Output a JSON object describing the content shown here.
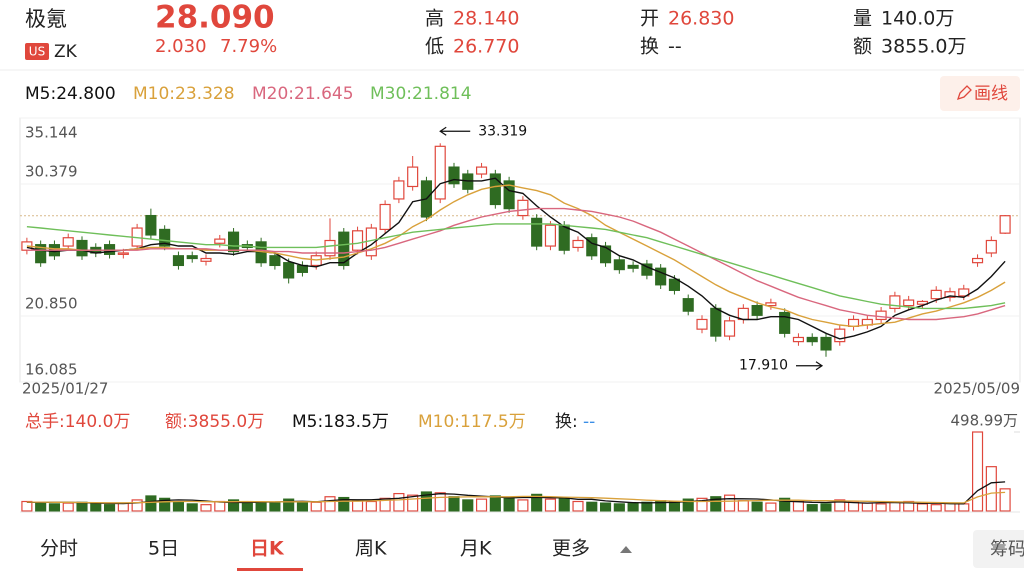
{
  "header": {
    "name": "极氪",
    "market": "US",
    "symbol": "ZK",
    "price": "28.090",
    "change": "2.030",
    "change_pct": "7.79%",
    "quote": [
      {
        "label": "高",
        "value": "28.140"
      },
      {
        "label": "低",
        "value": "26.770"
      },
      {
        "label": "开",
        "value": "26.830"
      },
      {
        "label": "换",
        "value": "--"
      },
      {
        "label": "量",
        "value": "140.0万"
      },
      {
        "label": "额",
        "value": "3855.0万"
      }
    ],
    "draw_button": "画线"
  },
  "chart_data": {
    "type": "candlestick",
    "categories": [
      "2025/01/27",
      null,
      null,
      null,
      null,
      null,
      null,
      null,
      null,
      null,
      null,
      null,
      null,
      null,
      null,
      null,
      null,
      null,
      null,
      null,
      null,
      null,
      null,
      null,
      null,
      null,
      null,
      null,
      null,
      null,
      null,
      null,
      null,
      null,
      null,
      null,
      null,
      null,
      null,
      null,
      null,
      null,
      null,
      null,
      null,
      null,
      null,
      null,
      null,
      null,
      null,
      null,
      null,
      null,
      null,
      null,
      null,
      null,
      null,
      null,
      null,
      null,
      null,
      null,
      null,
      null,
      null,
      null,
      null,
      null,
      null,
      "2025/05/09"
    ],
    "open": [
      25.6,
      26.0,
      26.0,
      25.9,
      26.3,
      25.8,
      26.0,
      25.3,
      25.9,
      28.1,
      27.1,
      25.2,
      25.2,
      24.8,
      26.1,
      26.9,
      26.0,
      26.2,
      25.2,
      24.7,
      24.5,
      24.5,
      25.2,
      26.9,
      25.6,
      25.2,
      27.1,
      29.3,
      30.2,
      30.6,
      29.3,
      31.6,
      31.1,
      31.1,
      31.1,
      30.6,
      28.1,
      27.9,
      25.9,
      27.4,
      25.8,
      26.5,
      25.9,
      24.9,
      24.5,
      24.6,
      24.3,
      23.5,
      22.1,
      19.9,
      21.4,
      19.4,
      20.6,
      21.6,
      21.6,
      21.1,
      19.0,
      19.3,
      19.3,
      19.0,
      20.1,
      20.2,
      20.6,
      21.4,
      21.6,
      21.7,
      22.1,
      22.2,
      22.3,
      24.7,
      25.4,
      26.83
    ],
    "high": [
      26.5,
      26.3,
      26.3,
      26.8,
      26.6,
      26.1,
      26.3,
      25.7,
      27.5,
      28.6,
      27.4,
      25.5,
      25.5,
      25.3,
      26.7,
      27.2,
      26.3,
      26.5,
      25.5,
      25.0,
      24.8,
      25.5,
      27.9,
      27.2,
      27.3,
      27.5,
      29.2,
      30.9,
      32.4,
      30.9,
      33.319,
      31.9,
      31.4,
      31.9,
      31.4,
      30.9,
      29.5,
      28.2,
      27.7,
      27.7,
      26.6,
      26.8,
      26.2,
      25.2,
      24.8,
      24.9,
      24.6,
      23.8,
      22.4,
      20.9,
      21.7,
      20.8,
      21.7,
      21.9,
      22.1,
      21.4,
      19.6,
      19.6,
      19.6,
      20.2,
      20.9,
      20.9,
      21.5,
      22.6,
      22.3,
      22.0,
      23.0,
      22.9,
      23.1,
      25.3,
      26.6,
      28.14
    ],
    "low": [
      25.3,
      24.4,
      24.9,
      25.6,
      24.9,
      25.1,
      25.0,
      25.0,
      25.6,
      26.4,
      25.6,
      24.2,
      24.7,
      24.5,
      25.8,
      25.2,
      25.5,
      24.4,
      24.2,
      23.2,
      23.7,
      24.2,
      24.9,
      24.2,
      25.3,
      24.9,
      26.8,
      29.0,
      29.9,
      27.7,
      29.0,
      30.1,
      29.7,
      30.8,
      28.6,
      28.3,
      27.8,
      25.6,
      25.6,
      25.3,
      25.5,
      24.9,
      24.4,
      23.9,
      24.0,
      23.5,
      22.8,
      22.4,
      20.9,
      19.6,
      19.0,
      19.1,
      20.3,
      20.6,
      21.3,
      19.3,
      18.7,
      18.7,
      17.91,
      18.7,
      19.8,
      19.9,
      20.3,
      21.1,
      21.3,
      21.4,
      21.8,
      21.9,
      22.0,
      24.4,
      25.1,
      26.77
    ],
    "close": [
      26.2,
      24.7,
      25.2,
      26.5,
      25.2,
      25.4,
      25.3,
      25.4,
      27.2,
      26.7,
      25.9,
      24.5,
      25.0,
      25.0,
      26.4,
      25.5,
      25.8,
      24.7,
      24.5,
      23.6,
      24.0,
      25.2,
      26.3,
      24.5,
      27.0,
      27.2,
      28.9,
      30.6,
      31.6,
      28.0,
      33.1,
      30.4,
      30.0,
      31.6,
      28.9,
      28.6,
      29.2,
      25.9,
      27.4,
      25.6,
      26.3,
      25.2,
      24.7,
      24.2,
      24.3,
      23.8,
      23.1,
      22.7,
      21.2,
      20.6,
      19.4,
      20.5,
      21.4,
      20.9,
      21.8,
      19.6,
      19.3,
      19.0,
      18.4,
      19.9,
      20.6,
      20.6,
      21.2,
      22.3,
      22.0,
      21.9,
      22.7,
      22.6,
      22.8,
      25.0,
      26.3,
      28.09
    ],
    "up_color": "#e0473c",
    "down_color": "#2f6b22",
    "ma": [
      {
        "name": "M5:24.800",
        "color": "#111111",
        "values": [
          25.8,
          25.6,
          25.5,
          25.6,
          25.6,
          25.4,
          25.5,
          25.6,
          25.7,
          26.0,
          26.1,
          25.9,
          25.9,
          25.4,
          25.4,
          25.3,
          25.5,
          25.5,
          25.4,
          24.8,
          24.5,
          24.4,
          24.7,
          24.7,
          25.4,
          26.0,
          26.8,
          27.6,
          29.1,
          29.3,
          30.4,
          30.7,
          30.6,
          30.6,
          30.8,
          29.9,
          29.7,
          28.8,
          28.0,
          27.3,
          26.9,
          26.1,
          25.8,
          25.2,
          24.9,
          24.4,
          24.0,
          23.6,
          23.0,
          22.3,
          21.4,
          20.9,
          20.6,
          20.6,
          20.8,
          20.8,
          20.6,
          20.1,
          19.6,
          19.2,
          19.4,
          19.7,
          20.1,
          20.9,
          21.3,
          21.6,
          22.0,
          22.3,
          22.2,
          22.8,
          23.7,
          24.8
        ]
      },
      {
        "name": "M10:23.328",
        "color": "#d9a13b",
        "values": [
          25.9,
          25.8,
          25.7,
          25.7,
          25.6,
          25.6,
          25.6,
          25.6,
          25.7,
          25.8,
          25.8,
          25.7,
          25.7,
          25.6,
          25.6,
          25.6,
          25.6,
          25.5,
          25.4,
          25.2,
          25.0,
          24.9,
          25.0,
          25.1,
          25.4,
          25.7,
          26.1,
          26.6,
          27.3,
          27.8,
          28.5,
          29.1,
          29.6,
          30.0,
          30.2,
          30.3,
          30.1,
          29.9,
          29.6,
          29.0,
          28.6,
          28.1,
          27.4,
          26.9,
          26.4,
          25.9,
          25.4,
          24.9,
          24.3,
          23.7,
          23.1,
          22.6,
          22.2,
          21.8,
          21.5,
          21.3,
          20.9,
          20.6,
          20.4,
          20.2,
          20.1,
          20.2,
          20.3,
          20.4,
          20.7,
          21.0,
          21.2,
          21.5,
          21.8,
          22.2,
          22.7,
          23.3
        ]
      },
      {
        "name": "M20:21.645",
        "color": "#d9677e",
        "values": [
          25.6,
          25.6,
          25.6,
          25.6,
          25.6,
          25.6,
          25.6,
          25.6,
          25.6,
          25.7,
          25.7,
          25.7,
          25.7,
          25.7,
          25.6,
          25.6,
          25.6,
          25.6,
          25.5,
          25.5,
          25.4,
          25.4,
          25.4,
          25.4,
          25.5,
          25.6,
          25.8,
          26.1,
          26.4,
          26.7,
          27.0,
          27.4,
          27.7,
          28.0,
          28.2,
          28.4,
          28.5,
          28.6,
          28.6,
          28.6,
          28.5,
          28.4,
          28.2,
          28.0,
          27.7,
          27.3,
          26.9,
          26.4,
          25.9,
          25.4,
          24.9,
          24.4,
          23.9,
          23.4,
          23.0,
          22.6,
          22.2,
          21.9,
          21.6,
          21.3,
          21.1,
          20.9,
          20.8,
          20.7,
          20.6,
          20.6,
          20.6,
          20.7,
          20.8,
          21.0,
          21.3,
          21.6
        ]
      },
      {
        "name": "M30:21.814",
        "color": "#6fbf5a",
        "values": [
          27.3,
          27.2,
          27.1,
          27.0,
          26.9,
          26.8,
          26.7,
          26.6,
          26.5,
          26.4,
          26.3,
          26.2,
          26.1,
          26.0,
          26.0,
          25.9,
          25.9,
          25.8,
          25.8,
          25.8,
          25.8,
          25.8,
          25.9,
          26.0,
          26.1,
          26.3,
          26.5,
          26.7,
          26.9,
          27.0,
          27.1,
          27.2,
          27.3,
          27.4,
          27.5,
          27.5,
          27.5,
          27.5,
          27.5,
          27.4,
          27.3,
          27.2,
          27.1,
          26.9,
          26.7,
          26.5,
          26.2,
          25.9,
          25.6,
          25.3,
          25.0,
          24.7,
          24.4,
          24.1,
          23.8,
          23.5,
          23.2,
          22.9,
          22.6,
          22.3,
          22.1,
          21.9,
          21.7,
          21.6,
          21.5,
          21.4,
          21.4,
          21.4,
          21.4,
          21.5,
          21.6,
          21.8
        ]
      }
    ],
    "ylim": [
      16.085,
      35.144
    ],
    "yticks": [
      {
        "value": 16.085,
        "label": "16.085"
      },
      {
        "value": 20.85,
        "label": "20.850"
      },
      {
        "value": 30.379,
        "label": "30.379"
      },
      {
        "value": 35.144,
        "label": "35.144"
      }
    ],
    "grid": true,
    "annotations": [
      {
        "label": "33.319",
        "value": 33.319
      },
      {
        "label": "17.910",
        "value": 17.91
      }
    ],
    "volume": {
      "total": "总手:140.0万",
      "amount": "额:3855.0万",
      "turnover_label": "换:",
      "turnover": "--",
      "ylim": [
        0,
        498.99
      ],
      "yticks": [
        {
          "value": 498.99,
          "label": "498.99万"
        }
      ],
      "values": [
        60,
        55,
        45,
        50,
        55,
        45,
        40,
        50,
        70,
        95,
        80,
        55,
        45,
        40,
        60,
        70,
        50,
        55,
        50,
        75,
        55,
        55,
        90,
        85,
        65,
        60,
        80,
        110,
        100,
        120,
        115,
        90,
        70,
        75,
        95,
        85,
        70,
        105,
        75,
        80,
        60,
        55,
        50,
        45,
        50,
        55,
        65,
        60,
        75,
        80,
        90,
        100,
        65,
        55,
        50,
        80,
        60,
        40,
        45,
        70,
        55,
        50,
        45,
        55,
        60,
        45,
        40,
        50,
        45,
        498.99,
        280,
        140
      ],
      "ma": [
        {
          "name": "M5:183.5万",
          "color": "#111111",
          "values": [
            55,
            55,
            55,
            55,
            53,
            50,
            48,
            47,
            52,
            60,
            67,
            70,
            69,
            63,
            56,
            54,
            54,
            56,
            57,
            60,
            61,
            58,
            65,
            72,
            71,
            71,
            76,
            80,
            91,
            101,
            109,
            107,
            99,
            94,
            89,
            83,
            85,
            86,
            84,
            83,
            74,
            74,
            64,
            58,
            53,
            51,
            53,
            55,
            60,
            66,
            74,
            78,
            77,
            76,
            70,
            62,
            59,
            55,
            54,
            58,
            53,
            50,
            53,
            53,
            51,
            49,
            50,
            46,
            45,
            128,
            178,
            183.5
          ]
        },
        {
          "name": "M10:117.5万",
          "color": "#d9a13b",
          "values": [
            56,
            56,
            55,
            55,
            54,
            53,
            52,
            52,
            53,
            55,
            58,
            60,
            60,
            59,
            58,
            59,
            60,
            59,
            58,
            58,
            58,
            58,
            60,
            62,
            62,
            64,
            67,
            70,
            76,
            81,
            86,
            88,
            89,
            90,
            90,
            90,
            92,
            92,
            91,
            88,
            86,
            84,
            81,
            77,
            73,
            68,
            65,
            62,
            60,
            60,
            61,
            62,
            64,
            66,
            68,
            68,
            68,
            66,
            65,
            64,
            63,
            61,
            60,
            58,
            57,
            55,
            54,
            52,
            51,
            89,
            113,
            117.5
          ]
        }
      ]
    }
  },
  "tabs": [
    "分时",
    "5日",
    "日K",
    "周K",
    "月K",
    "更多"
  ],
  "side_button": "筹码"
}
